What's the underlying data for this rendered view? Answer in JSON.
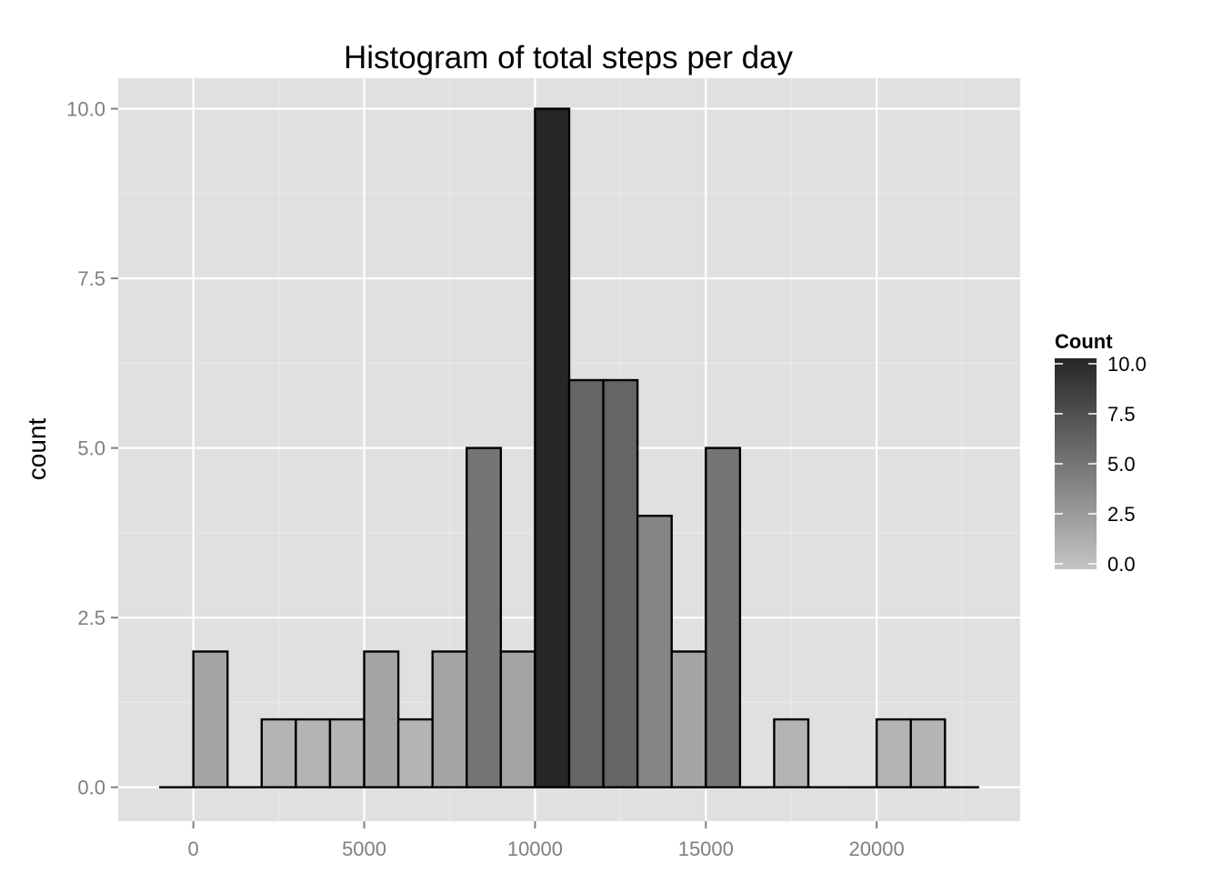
{
  "chart_data": {
    "type": "bar",
    "title": "Histogram of total steps per day",
    "xlabel": "",
    "ylabel": "count",
    "bin_width": 1000,
    "bins": [
      {
        "x_start": -1000,
        "x_end": 0,
        "count": 0
      },
      {
        "x_start": 0,
        "x_end": 1000,
        "count": 2
      },
      {
        "x_start": 1000,
        "x_end": 2000,
        "count": 0
      },
      {
        "x_start": 2000,
        "x_end": 3000,
        "count": 1
      },
      {
        "x_start": 3000,
        "x_end": 4000,
        "count": 1
      },
      {
        "x_start": 4000,
        "x_end": 5000,
        "count": 1
      },
      {
        "x_start": 5000,
        "x_end": 6000,
        "count": 2
      },
      {
        "x_start": 6000,
        "x_end": 7000,
        "count": 1
      },
      {
        "x_start": 7000,
        "x_end": 8000,
        "count": 2
      },
      {
        "x_start": 8000,
        "x_end": 9000,
        "count": 5
      },
      {
        "x_start": 9000,
        "x_end": 10000,
        "count": 2
      },
      {
        "x_start": 10000,
        "x_end": 11000,
        "count": 10
      },
      {
        "x_start": 11000,
        "x_end": 12000,
        "count": 6
      },
      {
        "x_start": 12000,
        "x_end": 13000,
        "count": 6
      },
      {
        "x_start": 13000,
        "x_end": 14000,
        "count": 4
      },
      {
        "x_start": 14000,
        "x_end": 15000,
        "count": 2
      },
      {
        "x_start": 15000,
        "x_end": 16000,
        "count": 5
      },
      {
        "x_start": 16000,
        "x_end": 17000,
        "count": 0
      },
      {
        "x_start": 17000,
        "x_end": 18000,
        "count": 1
      },
      {
        "x_start": 18000,
        "x_end": 19000,
        "count": 0
      },
      {
        "x_start": 19000,
        "x_end": 20000,
        "count": 0
      },
      {
        "x_start": 20000,
        "x_end": 21000,
        "count": 1
      },
      {
        "x_start": 21000,
        "x_end": 22000,
        "count": 1
      },
      {
        "x_start": 22000,
        "x_end": 23000,
        "count": 0
      }
    ],
    "xlim": [
      -2200,
      24200
    ],
    "ylim": [
      -0.5,
      10.45
    ],
    "x_ticks": [
      0,
      5000,
      10000,
      15000,
      20000
    ],
    "x_tick_labels": [
      "0",
      "5000",
      "10000",
      "15000",
      "20000"
    ],
    "y_ticks": [
      0,
      2.5,
      5,
      7.5,
      10
    ],
    "y_tick_labels": [
      "0.0",
      "2.5",
      "5.0",
      "7.5",
      "10.0"
    ],
    "grid": true,
    "legend": {
      "title": "Count",
      "placement": "right",
      "range": [
        0,
        10
      ],
      "ticks": [
        0,
        2.5,
        5,
        7.5,
        10
      ],
      "tick_labels": [
        "0.0",
        "2.5",
        "5.0",
        "7.5",
        "10.0"
      ],
      "color_low": "#c4c4c4",
      "color_high": "#262626"
    },
    "colors": {
      "panel_background": "#e0e0e0",
      "grid_major": "#ffffff",
      "grid_minor": "#ebebeb",
      "bar_outline": "#000000"
    }
  }
}
